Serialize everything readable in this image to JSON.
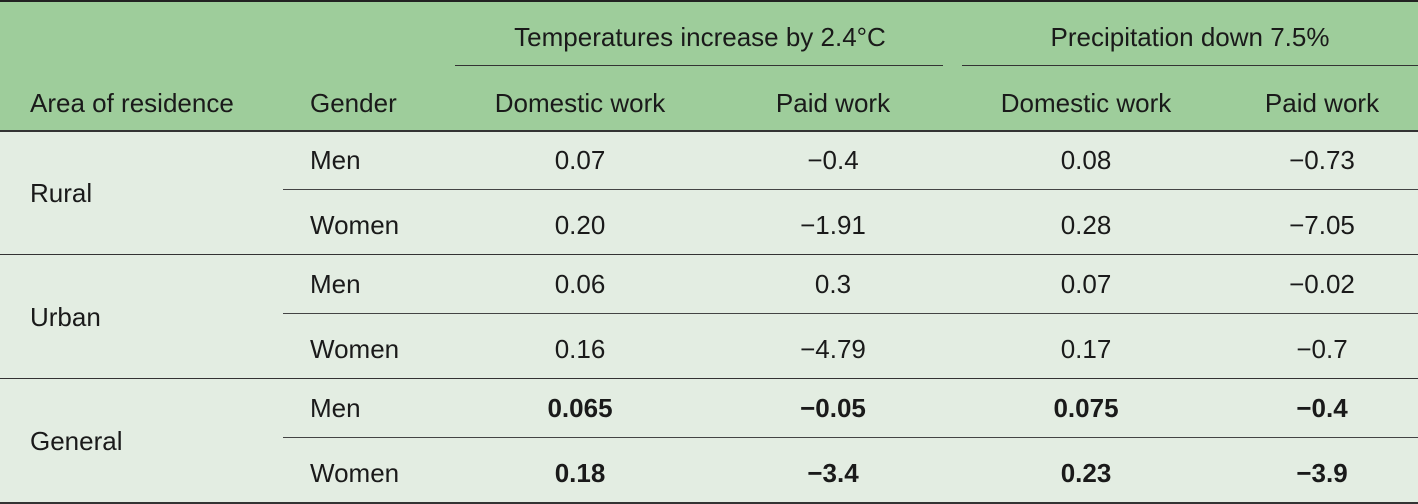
{
  "table": {
    "group_headers": [
      "Temperatures increase by 2.4°C",
      "Precipitation down 7.5%"
    ],
    "columns": [
      "Area of residence",
      "Gender",
      "Domestic work",
      "Paid work",
      "Domestic work",
      "Paid work"
    ],
    "groups": [
      {
        "area": "Rural",
        "bold": false,
        "rows": [
          {
            "gender": "Men",
            "values": [
              "0.07",
              "−0.4",
              "0.08",
              "−0.73"
            ]
          },
          {
            "gender": "Women",
            "values": [
              "0.20",
              "−1.91",
              "0.28",
              "−7.05"
            ]
          }
        ]
      },
      {
        "area": "Urban",
        "bold": false,
        "rows": [
          {
            "gender": "Men",
            "values": [
              "0.06",
              "0.3",
              "0.07",
              "−0.02"
            ]
          },
          {
            "gender": "Women",
            "values": [
              "0.16",
              "−4.79",
              "0.17",
              "−0.7"
            ]
          }
        ]
      },
      {
        "area": "General",
        "bold": true,
        "rows": [
          {
            "gender": "Men",
            "values": [
              "0.065",
              "−0.05",
              "0.075",
              "−0.4"
            ]
          },
          {
            "gender": "Women",
            "values": [
              "0.18",
              "−3.4",
              "0.23",
              "−3.9"
            ]
          }
        ]
      }
    ]
  }
}
